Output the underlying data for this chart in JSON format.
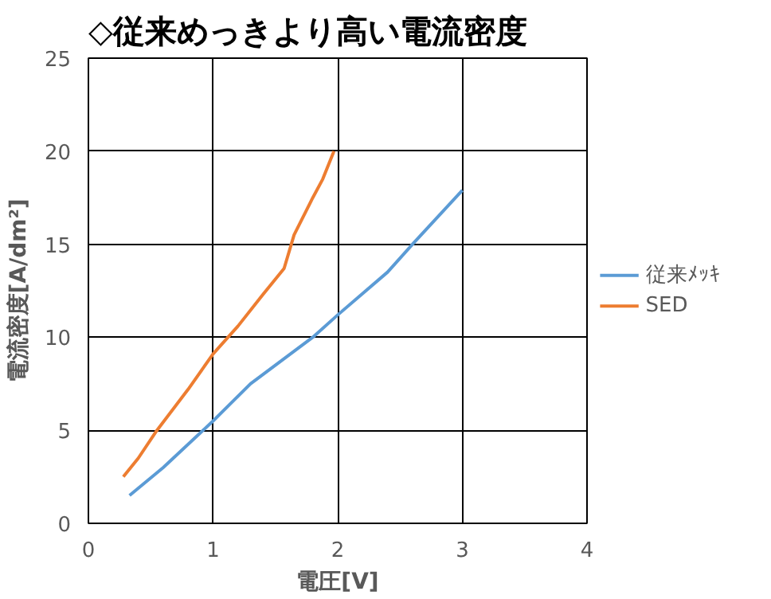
{
  "chart_data": {
    "type": "line",
    "title": "◇従来めっきより高い電流密度",
    "xlabel": "電圧[V]",
    "ylabel": "電流密度[A/dm²]",
    "xlim": [
      0,
      4
    ],
    "xticks": [
      0,
      1,
      2,
      3,
      4
    ],
    "ylim": [
      0,
      25
    ],
    "yticks": [
      0,
      5,
      10,
      15,
      20,
      25
    ],
    "grid": true,
    "legend": "right",
    "line_style": "solid",
    "series": [
      {
        "name": "従来ﾒｯｷ",
        "color": "#5b9bd5",
        "x": [
          0.33,
          0.6,
          1,
          1.3,
          1.8,
          2,
          2.4,
          2.6,
          3
        ],
        "values": [
          1.5,
          3,
          5.5,
          7.5,
          10,
          11.2,
          13.5,
          15,
          17.9
        ]
      },
      {
        "name": "SED",
        "color": "#ed7d31",
        "x": [
          0.28,
          0.4,
          0.55,
          0.8,
          1,
          1.2,
          1.4,
          1.57,
          1.65,
          1.8,
          1.88,
          1.97
        ],
        "values": [
          2.5,
          3.5,
          5,
          7.2,
          9.1,
          10.6,
          12.3,
          13.7,
          15.5,
          17.5,
          18.5,
          20
        ]
      }
    ]
  }
}
